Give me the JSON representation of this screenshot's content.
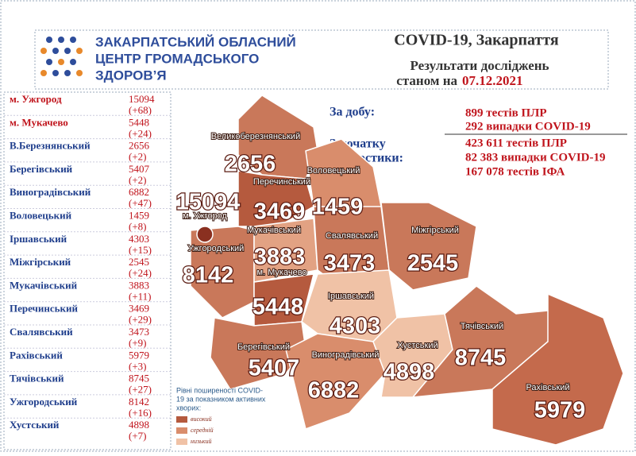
{
  "header": {
    "org": [
      "ЗАКАРПАТСЬКИЙ ОБЛАСНИЙ",
      "ЦЕНТР ГРОМАДСЬКОГО",
      "ЗДОРОВ’Я"
    ],
    "title": "COVID-19, Закарпаття",
    "subtitle": "Результати досліджень",
    "date_prefix": "станом на",
    "date": "07.12.2021"
  },
  "stats": {
    "daily_label": "За добу:",
    "daily": [
      "899 тестів ПЛР",
      "292 випадки COVID-19"
    ],
    "total_label": [
      "З початку",
      "діагностики:"
    ],
    "total": [
      "423 611 тестів ПЛР",
      "82 383 випадки COVID-19",
      "167 078 тестів ІФА"
    ]
  },
  "table": {
    "rows": [
      [
        "м. Ужгород",
        15094,
        "(+68)"
      ],
      [
        "м. Мукачево",
        5448,
        "(+24)"
      ],
      [
        "В.Березнянський",
        2656,
        "(+2)"
      ],
      [
        "Берегівський",
        5407,
        "(+2)"
      ],
      [
        "Виноградівський",
        6882,
        "(+47)"
      ],
      [
        "Воловецький",
        1459,
        "(+8)"
      ],
      [
        "Іршавський",
        4303,
        "(+15)"
      ],
      [
        "Міжгірський",
        2545,
        "(+24)"
      ],
      [
        "Мукачівський",
        3883,
        "(+11)"
      ],
      [
        "Перечинський",
        3469,
        "(+29)"
      ],
      [
        "Свалявський",
        3473,
        "(+9)"
      ],
      [
        "Рахівський",
        5979,
        "(+3)"
      ],
      [
        "Тячівський",
        8745,
        "(+27)"
      ],
      [
        "Ужгородський",
        8142,
        "(+16)"
      ],
      [
        "Хустський",
        4898,
        "(+7)"
      ]
    ]
  },
  "map": {
    "labels": [
      [
        "Великоберезнянський",
        2656
      ],
      [
        "Перечинський",
        3469
      ],
      [
        "Воловецький",
        1459
      ],
      [
        "м. Ужгород",
        15094
      ],
      [
        "Ужгородський",
        8142
      ],
      [
        "Мукачівський",
        3883
      ],
      [
        "м. Мукачево",
        5448
      ],
      [
        "Свалявський",
        3473
      ],
      [
        "Міжгірський",
        2545
      ],
      [
        "Іршавський",
        4303
      ],
      [
        "Берегівський",
        5407
      ],
      [
        "Виноградівський",
        6882
      ],
      [
        "Хустський",
        4898
      ],
      [
        "Тячівський",
        8745
      ],
      [
        "Рахівський",
        5979
      ]
    ]
  },
  "legend": {
    "title": [
      "Рівні поширеності COVID-",
      "19 за показником активних",
      "хворих:"
    ],
    "items": [
      "високий",
      "середній",
      "низький"
    ]
  }
}
